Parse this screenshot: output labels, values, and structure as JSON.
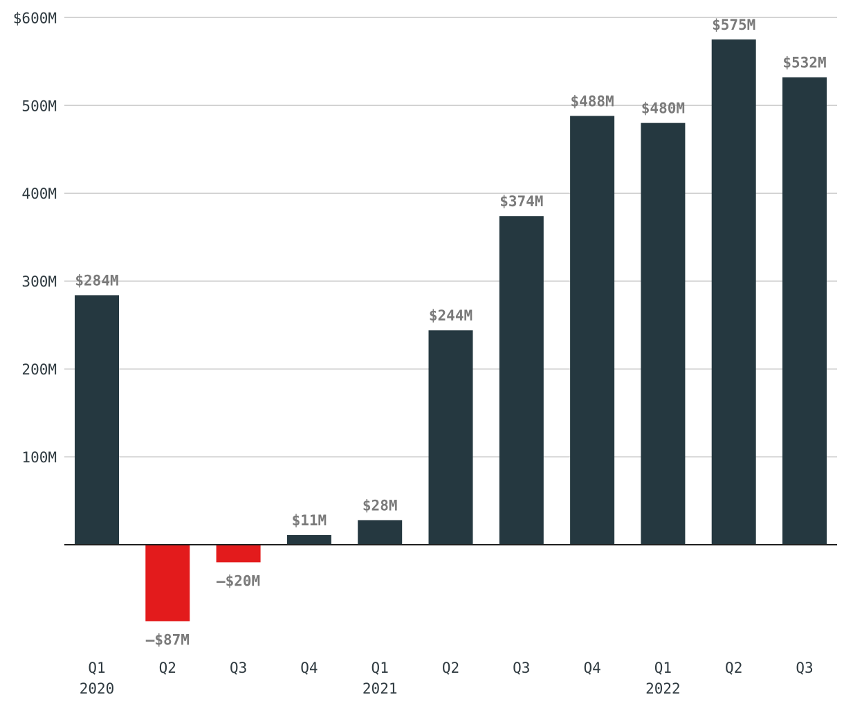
{
  "chart_data": {
    "type": "bar",
    "title": "",
    "xlabel": "",
    "ylabel": "",
    "categories": [
      "Q1 2020",
      "Q2 2020",
      "Q3 2020",
      "Q4 2020",
      "Q1 2021",
      "Q2 2021",
      "Q3 2021",
      "Q4 2021",
      "Q1 2022",
      "Q2 2022",
      "Q3 2022"
    ],
    "x_tick_labels": [
      {
        "quarter": "Q1",
        "year": "2020"
      },
      {
        "quarter": "Q2",
        "year": ""
      },
      {
        "quarter": "Q3",
        "year": ""
      },
      {
        "quarter": "Q4",
        "year": ""
      },
      {
        "quarter": "Q1",
        "year": "2021"
      },
      {
        "quarter": "Q2",
        "year": ""
      },
      {
        "quarter": "Q3",
        "year": ""
      },
      {
        "quarter": "Q4",
        "year": ""
      },
      {
        "quarter": "Q1",
        "year": "2022"
      },
      {
        "quarter": "Q2",
        "year": ""
      },
      {
        "quarter": "Q3",
        "year": ""
      }
    ],
    "values": [
      284,
      -87,
      -20,
      11,
      28,
      244,
      374,
      488,
      480,
      575,
      532
    ],
    "value_unit": "$M",
    "data_labels": [
      "$284M",
      "–$87M",
      "–$20M",
      "$11M",
      "$28M",
      "$244M",
      "$374M",
      "$488M",
      "$480M",
      "$575M",
      "$532M"
    ],
    "ylim": [
      -120,
      600
    ],
    "y_ticks": [
      100,
      200,
      300,
      400,
      500,
      600
    ],
    "y_tick_labels": [
      "100M",
      "200M",
      "300M",
      "400M",
      "500M",
      "$600M"
    ],
    "grid": true,
    "legend": "none",
    "colors": {
      "positive": "#253840",
      "negative": "#e31b1c",
      "grid": "#cfcfcf",
      "zero_line": "#1f1f1f",
      "data_label": "#7a7a7a",
      "tick_label": "#2f3a40"
    }
  }
}
